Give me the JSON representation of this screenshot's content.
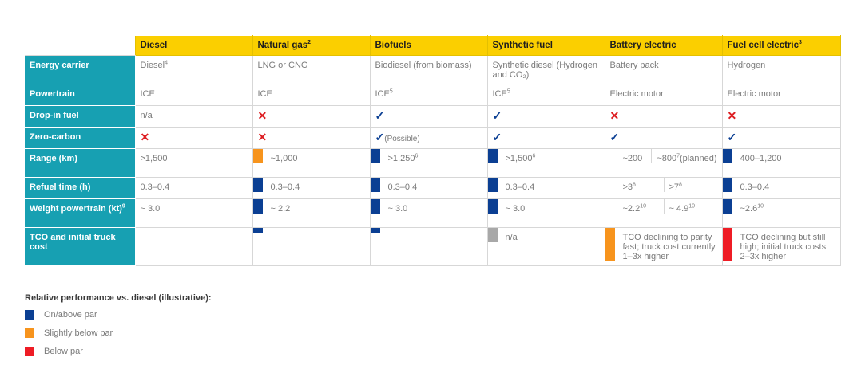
{
  "colors": {
    "header_bg": "#fbcf00",
    "row_header_bg": "#17a0b2",
    "on_above_par": "#0b3f93",
    "slightly_below_par": "#f7941d",
    "below_par": "#ee1c25",
    "not_applicable": "#a8a8a8"
  },
  "columns": [
    {
      "label": "Diesel",
      "sup": ""
    },
    {
      "label": "Natural gas",
      "sup": "2"
    },
    {
      "label": "Biofuels",
      "sup": ""
    },
    {
      "label": "Synthetic fuel",
      "sup": ""
    },
    {
      "label": "Battery electric",
      "sup": ""
    },
    {
      "label": "Fuel cell electric",
      "sup": "3"
    }
  ],
  "rows": {
    "energy_carrier": {
      "label": "Energy carrier",
      "cells": [
        {
          "text": "Diesel",
          "sup": "4"
        },
        {
          "text": "LNG or CNG",
          "sup": ""
        },
        {
          "text": "Biodiesel (from biomass)",
          "sup": ""
        },
        {
          "text": "Synthetic diesel (Hydrogen and CO₂)",
          "sup": ""
        },
        {
          "text": "Battery pack",
          "sup": ""
        },
        {
          "text": "Hydrogen",
          "sup": ""
        }
      ]
    },
    "powertrain": {
      "label": "Powertrain",
      "cells": [
        {
          "text": "ICE",
          "sup": ""
        },
        {
          "text": "ICE",
          "sup": ""
        },
        {
          "text": "ICE",
          "sup": "5"
        },
        {
          "text": "ICE",
          "sup": "5"
        },
        {
          "text": "Electric motor",
          "sup": ""
        },
        {
          "text": "Electric motor",
          "sup": ""
        }
      ]
    },
    "drop_in_fuel": {
      "label": "Drop-in fuel",
      "cells": [
        {
          "text": "n/a",
          "icon": ""
        },
        {
          "text": "",
          "icon": "cross-icon"
        },
        {
          "text": "",
          "icon": "check-icon"
        },
        {
          "text": "",
          "icon": "check-icon"
        },
        {
          "text": "",
          "icon": "cross-icon"
        },
        {
          "text": "",
          "icon": "cross-icon"
        }
      ]
    },
    "zero_carbon": {
      "label": "Zero-carbon",
      "cells": [
        {
          "text": "",
          "icon": "cross-icon"
        },
        {
          "text": "",
          "icon": "cross-icon"
        },
        {
          "text": "(Possible)",
          "icon": "check-icon"
        },
        {
          "text": "",
          "icon": "check-icon"
        },
        {
          "text": "",
          "icon": "check-icon"
        },
        {
          "text": "",
          "icon": "check-icon"
        }
      ]
    },
    "range": {
      "label": "Range (km)",
      "diesel": {
        "text": ">1,500",
        "sup": ""
      },
      "natural_gas": {
        "text": "~1,000",
        "sup": "",
        "rating": "slightly_below_par"
      },
      "biofuels": {
        "text": ">1,250",
        "sup": "6",
        "rating": "on_above_par"
      },
      "synthetic_fuel": {
        "text": ">1,500",
        "sup": "6",
        "rating": "on_above_par"
      },
      "battery_electric_a": {
        "text": "~200",
        "sup": "",
        "rating": "slightly_below_par"
      },
      "battery_electric_b": {
        "text": "~800",
        "sup": "7",
        "note": "(planned)"
      },
      "fuel_cell": {
        "text": "400–1,200",
        "sup": "",
        "rating": "on_above_par"
      }
    },
    "refuel_time": {
      "label": "Refuel time (h)",
      "diesel": {
        "text": "0.3–0.4",
        "sup": ""
      },
      "natural_gas": {
        "text": "0.3–0.4",
        "sup": "",
        "rating": "on_above_par"
      },
      "biofuels": {
        "text": "0.3–0.4",
        "sup": "",
        "rating": "on_above_par"
      },
      "synthetic_fuel": {
        "text": "0.3–0.4",
        "sup": "",
        "rating": "on_above_par"
      },
      "battery_electric_a": {
        "text": ">3",
        "sup": "8",
        "rating": "below_par"
      },
      "battery_electric_b": {
        "text": ">7",
        "sup": "8"
      },
      "fuel_cell": {
        "text": "0.3–0.4",
        "sup": "",
        "rating": "on_above_par"
      }
    },
    "weight_powertrain": {
      "label": "Weight powertrain (kt)",
      "label_sup": "9",
      "diesel": {
        "text": "~ 3.0",
        "sup": ""
      },
      "natural_gas": {
        "text": "~ 2.2",
        "sup": "",
        "rating": "on_above_par"
      },
      "biofuels": {
        "text": "~ 3.0",
        "sup": "",
        "rating": "on_above_par"
      },
      "synthetic_fuel": {
        "text": "~ 3.0",
        "sup": "",
        "rating": "on_above_par"
      },
      "battery_electric_a": {
        "text": "~2.2",
        "sup": "10",
        "rating": "slightly_below_par"
      },
      "battery_electric_b": {
        "text": "~ 4.9",
        "sup": "10"
      },
      "fuel_cell": {
        "text": "~2.6",
        "sup": "10",
        "rating": "on_above_par"
      }
    },
    "tco": {
      "label": "TCO and initial truck cost",
      "diesel": {
        "text": ""
      },
      "natural_gas": {
        "text": "",
        "rating": "on_above_par"
      },
      "biofuels": {
        "text": "",
        "rating": "on_above_par"
      },
      "synthetic_fuel": {
        "text": "n/a",
        "rating": "not_applicable"
      },
      "battery_electric": {
        "text": "TCO declining to parity fast; truck cost currently 1–3x higher",
        "rating": "slightly_below_par"
      },
      "fuel_cell": {
        "text": "TCO declining but still high; initial truck costs 2–3x higher",
        "rating": "below_par"
      }
    }
  },
  "legend": {
    "title": "Relative performance vs. diesel (illustrative):",
    "items": [
      {
        "label": "On/above par",
        "color": "#0b3f93"
      },
      {
        "label": "Slightly below par",
        "color": "#f7941d"
      },
      {
        "label": "Below par",
        "color": "#ee1c25"
      }
    ]
  }
}
